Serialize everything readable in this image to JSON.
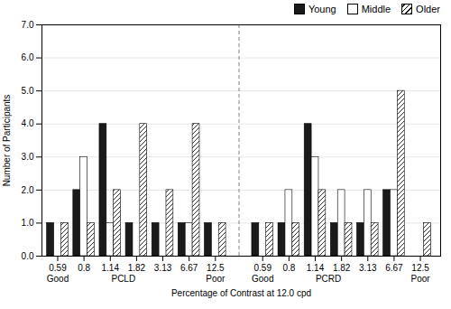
{
  "chart_data": {
    "type": "bar",
    "xlabel": "Percentage of Contrast at 12.0 cpd",
    "ylabel": "Number of Participants",
    "categories": [
      "0.59",
      "0.8",
      "1.14",
      "1.82",
      "3.13",
      "6.67",
      "12.5",
      "0.59",
      "0.8",
      "1.14",
      "1.82",
      "3.13",
      "6.67",
      "12.5"
    ],
    "series": [
      {
        "name": "Young",
        "color": "#1a1a1a",
        "values": [
          1,
          2,
          4,
          1,
          1,
          1,
          1,
          1,
          1,
          4,
          1,
          1,
          2,
          0
        ]
      },
      {
        "name": "Middle",
        "color": "#ffffff",
        "values": [
          0,
          3,
          1,
          0,
          0,
          1,
          0,
          0,
          2,
          3,
          2,
          2,
          2,
          0
        ]
      },
      {
        "name": "Older",
        "color": "#ffffff",
        "values": [
          1,
          1,
          2,
          4,
          2,
          4,
          1,
          1,
          1,
          2,
          1,
          1,
          5,
          1
        ]
      }
    ],
    "annotations": [
      {
        "text": "Good",
        "x": 0
      },
      {
        "text": "PCLD",
        "x": 2.5
      },
      {
        "text": "Poor",
        "x": 6
      },
      {
        "text": "Good",
        "x": 7
      },
      {
        "text": "PCRD",
        "x": 9.5
      },
      {
        "text": "Poor",
        "x": 13
      }
    ],
    "ylim": [
      0,
      7
    ],
    "yticks": [
      0,
      1,
      2,
      3,
      4,
      5,
      6,
      7
    ],
    "grid": true,
    "legend": "upper right"
  }
}
